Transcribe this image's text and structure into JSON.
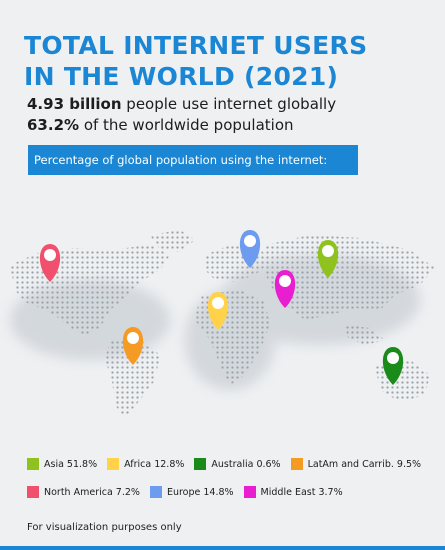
{
  "title": {
    "line1": "TOTAL INTERNET USERS",
    "line2": "IN THE WORLD (2021)"
  },
  "stats": {
    "line1_bold": "4.93 billion",
    "line1_rest": " people use internet globally",
    "line2_bold": "63.2%",
    "line2_rest": " of the worldwide population"
  },
  "banner": "Percentage of global population using the internet:",
  "legend_row1": [
    {
      "label": "Asia 51.8%",
      "color": "#8fc21f"
    },
    {
      "label": "Africa 12.8%",
      "color": "#ffd24a"
    },
    {
      "label": "Australia 0.6%",
      "color": "#1a8a1a"
    },
    {
      "label": "LatAm and Carrib. 9.5%",
      "color": "#f59a23"
    }
  ],
  "legend_row2": [
    {
      "label": "North America 7.2%",
      "color": "#f0506e"
    },
    {
      "label": "Europe 14.8%",
      "color": "#6d9bf0"
    },
    {
      "label": "Middle East 3.7%",
      "color": "#e81ed0"
    }
  ],
  "note": "For visualization purposes only"
}
